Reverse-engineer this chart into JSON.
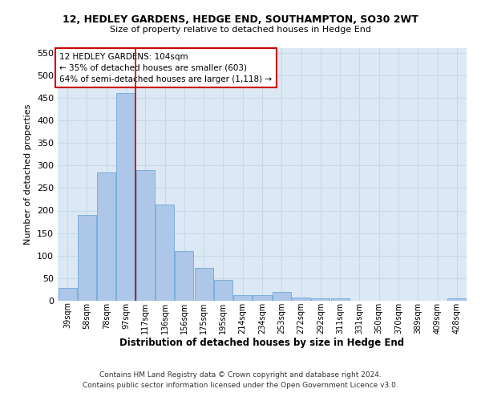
{
  "title1": "12, HEDLEY GARDENS, HEDGE END, SOUTHAMPTON, SO30 2WT",
  "title2": "Size of property relative to detached houses in Hedge End",
  "xlabel": "Distribution of detached houses by size in Hedge End",
  "ylabel": "Number of detached properties",
  "categories": [
    "39sqm",
    "58sqm",
    "78sqm",
    "97sqm",
    "117sqm",
    "136sqm",
    "156sqm",
    "175sqm",
    "195sqm",
    "214sqm",
    "234sqm",
    "253sqm",
    "272sqm",
    "292sqm",
    "311sqm",
    "331sqm",
    "350sqm",
    "370sqm",
    "389sqm",
    "409sqm",
    "428sqm"
  ],
  "values": [
    28,
    190,
    285,
    460,
    290,
    213,
    110,
    73,
    46,
    12,
    12,
    20,
    8,
    5,
    5,
    0,
    0,
    0,
    0,
    0,
    5
  ],
  "bar_color": "#aec6e8",
  "bar_edge_color": "#5a9fd4",
  "grid_color": "#c8d8e8",
  "background_color": "#dce9f5",
  "red_line_x": 3.5,
  "annotation_text": "12 HEDLEY GARDENS: 104sqm\n← 35% of detached houses are smaller (603)\n64% of semi-detached houses are larger (1,118) →",
  "annotation_box_color": "#ffffff",
  "annotation_edge_color": "#cc0000",
  "footer1": "Contains HM Land Registry data © Crown copyright and database right 2024.",
  "footer2": "Contains public sector information licensed under the Open Government Licence v3.0.",
  "ylim": [
    0,
    560
  ],
  "yticks": [
    0,
    50,
    100,
    150,
    200,
    250,
    300,
    350,
    400,
    450,
    500,
    550
  ]
}
